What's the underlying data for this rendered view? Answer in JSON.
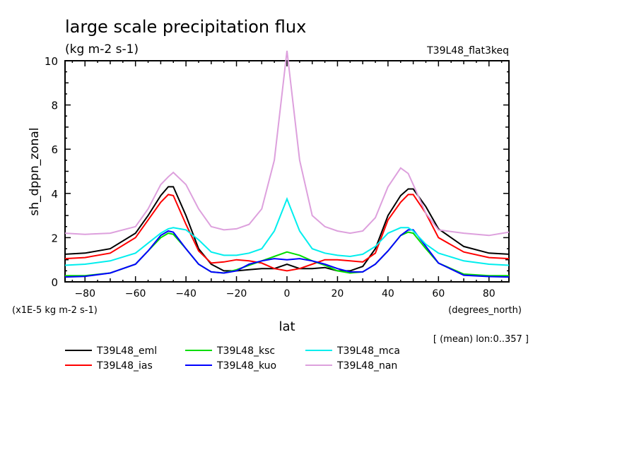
{
  "chart_data": {
    "type": "line",
    "title": "large scale precipitation flux",
    "units": "(kg m-2 s-1)",
    "experiment_label": "T39L48_flat3keq",
    "ylabel": "sh_dppn_zonal",
    "yscale_note": "(x1E-5 kg m-2 s-1)",
    "xlabel": "lat",
    "xunits": "(degrees_north)",
    "averaging_note": "[ (mean) lon:0..357 ]",
    "xlim": [
      -87.9,
      87.9
    ],
    "ylim": [
      0,
      10
    ],
    "xticks": [
      -80,
      -60,
      -40,
      -20,
      0,
      20,
      40,
      60,
      80
    ],
    "yticks": [
      0,
      2,
      4,
      6,
      8,
      10
    ],
    "grid": false,
    "legend_position": "bottom",
    "x": [
      -87.9,
      -80,
      -70,
      -60,
      -55,
      -50,
      -47,
      -45,
      -40,
      -35,
      -30,
      -25,
      -20,
      -15,
      -10,
      -5,
      0,
      5,
      10,
      15,
      20,
      25,
      30,
      35,
      40,
      45,
      48,
      50,
      55,
      60,
      70,
      80,
      87.9
    ],
    "series": [
      {
        "name": "T39L48_eml",
        "color": "#000000",
        "values": [
          1.25,
          1.3,
          1.5,
          2.2,
          3.0,
          3.9,
          4.3,
          4.3,
          3.0,
          1.5,
          0.8,
          0.5,
          0.5,
          0.55,
          0.6,
          0.6,
          0.8,
          0.6,
          0.6,
          0.65,
          0.5,
          0.5,
          0.7,
          1.5,
          3.0,
          3.9,
          4.2,
          4.2,
          3.4,
          2.4,
          1.6,
          1.3,
          1.25
        ]
      },
      {
        "name": "T39L48_ias",
        "color": "#ff0000",
        "values": [
          1.05,
          1.1,
          1.3,
          2.0,
          2.8,
          3.6,
          3.95,
          3.9,
          2.6,
          1.4,
          0.85,
          0.9,
          1.0,
          0.95,
          0.85,
          0.6,
          0.5,
          0.6,
          0.8,
          1.0,
          1.0,
          0.95,
          0.9,
          1.3,
          2.8,
          3.6,
          3.95,
          3.95,
          3.1,
          2.0,
          1.35,
          1.1,
          1.05
        ]
      },
      {
        "name": "T39L48_ksc",
        "color": "#00dd00",
        "values": [
          0.28,
          0.28,
          0.4,
          0.8,
          1.4,
          2.0,
          2.2,
          2.15,
          1.5,
          0.8,
          0.45,
          0.4,
          0.55,
          0.75,
          0.95,
          1.15,
          1.35,
          1.2,
          0.95,
          0.75,
          0.5,
          0.4,
          0.45,
          0.8,
          1.4,
          2.1,
          2.25,
          2.2,
          1.5,
          0.85,
          0.35,
          0.28,
          0.28
        ]
      },
      {
        "name": "T39L48_kuo",
        "color": "#0000ff",
        "values": [
          0.22,
          0.25,
          0.4,
          0.8,
          1.4,
          2.1,
          2.3,
          2.25,
          1.5,
          0.8,
          0.45,
          0.4,
          0.5,
          0.8,
          0.95,
          1.05,
          1.0,
          1.05,
          0.95,
          0.8,
          0.6,
          0.45,
          0.45,
          0.8,
          1.4,
          2.1,
          2.35,
          2.35,
          1.6,
          0.85,
          0.3,
          0.24,
          0.22
        ]
      },
      {
        "name": "T39L48_mca",
        "color": "#00eeee",
        "values": [
          0.75,
          0.8,
          0.95,
          1.3,
          1.75,
          2.2,
          2.4,
          2.45,
          2.35,
          1.9,
          1.35,
          1.2,
          1.2,
          1.3,
          1.5,
          2.3,
          3.75,
          2.3,
          1.5,
          1.3,
          1.2,
          1.15,
          1.25,
          1.6,
          2.2,
          2.45,
          2.45,
          2.3,
          1.7,
          1.3,
          0.95,
          0.8,
          0.75
        ]
      },
      {
        "name": "T39L48_nan",
        "color": "#dda0dd",
        "values": [
          2.2,
          2.15,
          2.2,
          2.5,
          3.3,
          4.4,
          4.75,
          4.95,
          4.4,
          3.3,
          2.5,
          2.35,
          2.4,
          2.6,
          3.3,
          5.5,
          10.45,
          5.5,
          3.0,
          2.5,
          2.3,
          2.2,
          2.3,
          2.9,
          4.3,
          5.15,
          4.9,
          4.4,
          3.1,
          2.35,
          2.2,
          2.1,
          2.25
        ]
      }
    ]
  }
}
